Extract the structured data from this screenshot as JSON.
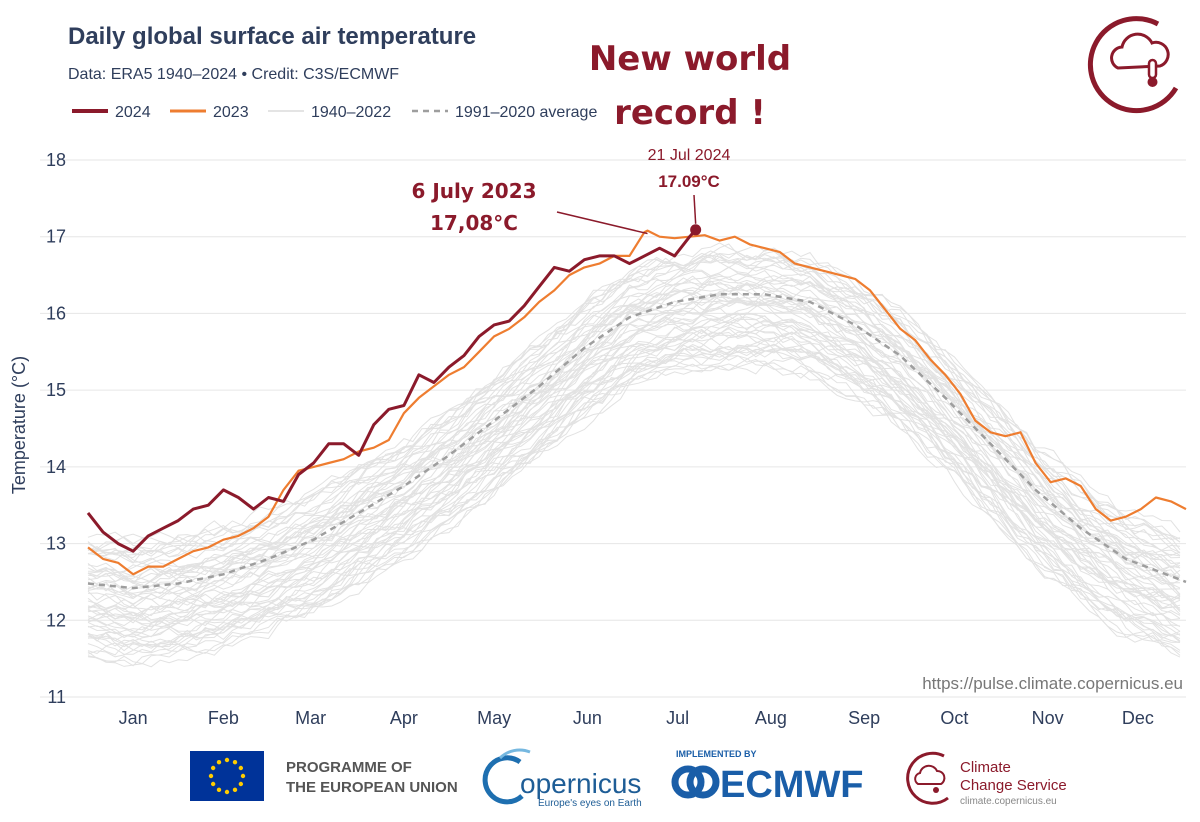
{
  "chart_data": {
    "type": "line",
    "title": "Daily global surface air temperature",
    "subtitle": "Data: ERA5 1940–2024  •  Credit: C3S/ECMWF",
    "ylabel": "Temperature (°C)",
    "xlabel": "",
    "ylim": [
      11,
      18
    ],
    "yticks": [
      11,
      12,
      13,
      14,
      15,
      16,
      17,
      18
    ],
    "months": [
      "Jan",
      "Feb",
      "Mar",
      "Apr",
      "May",
      "Jun",
      "Jul",
      "Aug",
      "Sep",
      "Oct",
      "Nov",
      "Dec"
    ],
    "legend": [
      "2024",
      "2023",
      "1940–2022",
      "1991–2020 average"
    ],
    "grid": true,
    "series": [
      {
        "name": "2024",
        "color": "#8b1a2b",
        "days": [
          1,
          6,
          11,
          16,
          21,
          26,
          31,
          36,
          41,
          46,
          51,
          56,
          61,
          66,
          71,
          76,
          81,
          86,
          91,
          96,
          101,
          106,
          111,
          116,
          121,
          126,
          131,
          136,
          141,
          146,
          151,
          156,
          161,
          166,
          171,
          176,
          181,
          186,
          191,
          196,
          201,
          203
        ],
        "values": [
          13.4,
          13.15,
          13.0,
          12.9,
          13.1,
          13.2,
          13.3,
          13.45,
          13.5,
          13.7,
          13.6,
          13.45,
          13.6,
          13.55,
          13.9,
          14.05,
          14.3,
          14.3,
          14.15,
          14.55,
          14.75,
          14.8,
          15.2,
          15.1,
          15.3,
          15.45,
          15.7,
          15.85,
          15.9,
          16.1,
          16.35,
          16.6,
          16.55,
          16.7,
          16.75,
          16.75,
          16.65,
          16.75,
          16.85,
          16.75,
          17.0,
          17.09
        ]
      },
      {
        "name": "2023",
        "color": "#ee7d30",
        "days": [
          1,
          6,
          11,
          16,
          21,
          26,
          31,
          36,
          41,
          46,
          51,
          56,
          61,
          66,
          71,
          76,
          81,
          86,
          91,
          96,
          101,
          106,
          111,
          116,
          121,
          126,
          131,
          136,
          141,
          146,
          151,
          156,
          161,
          166,
          171,
          176,
          181,
          186,
          187,
          191,
          196,
          201,
          206,
          211,
          216,
          221,
          226,
          231,
          236,
          241,
          246,
          251,
          256,
          261,
          266,
          271,
          276,
          281,
          286,
          291,
          296,
          301,
          306,
          311,
          316,
          321,
          326,
          331,
          336,
          341,
          346,
          351,
          356,
          361,
          366
        ],
        "values": [
          12.95,
          12.8,
          12.75,
          12.6,
          12.7,
          12.7,
          12.8,
          12.9,
          12.95,
          13.05,
          13.1,
          13.2,
          13.35,
          13.7,
          13.95,
          14.0,
          14.05,
          14.1,
          14.2,
          14.25,
          14.35,
          14.7,
          14.9,
          15.05,
          15.2,
          15.3,
          15.5,
          15.7,
          15.8,
          15.95,
          16.15,
          16.3,
          16.5,
          16.6,
          16.65,
          16.75,
          16.75,
          17.06,
          17.08,
          17.0,
          16.98,
          17.0,
          17.02,
          16.95,
          17.0,
          16.9,
          16.85,
          16.8,
          16.65,
          16.6,
          16.55,
          16.5,
          16.45,
          16.3,
          16.05,
          15.8,
          15.65,
          15.4,
          15.2,
          14.95,
          14.6,
          14.45,
          14.4,
          14.45,
          14.05,
          13.8,
          13.85,
          13.75,
          13.45,
          13.3,
          13.35,
          13.45,
          13.6,
          13.55,
          13.45
        ]
      },
      {
        "name": "1991–2020 average",
        "color": "#9e9e9e",
        "days": [
          1,
          16,
          31,
          46,
          61,
          76,
          91,
          106,
          121,
          136,
          151,
          166,
          181,
          196,
          211,
          226,
          241,
          256,
          271,
          286,
          301,
          316,
          331,
          346,
          366
        ],
        "values": [
          12.48,
          12.42,
          12.48,
          12.6,
          12.8,
          13.05,
          13.4,
          13.75,
          14.15,
          14.6,
          15.05,
          15.55,
          15.95,
          16.15,
          16.25,
          16.25,
          16.15,
          15.85,
          15.45,
          14.9,
          14.3,
          13.7,
          13.2,
          12.8,
          12.5
        ]
      }
    ],
    "background_band": {
      "name": "1940–2022",
      "color": "#e2e2e2",
      "note": "many grey lines spanning roughly 11.3–16.8 °C"
    },
    "annotations": [
      {
        "lines": [
          "New world",
          "record !"
        ]
      },
      {
        "lines": [
          "6 July 2023",
          "17,08°C"
        ],
        "day": 187,
        "value": 17.08
      },
      {
        "lines": [
          "21 Jul 2024",
          "17.09°C"
        ],
        "day": 203,
        "value": 17.09
      }
    ],
    "source_url": "https://pulse.climate.copernicus.eu"
  },
  "footer": {
    "eu_line1": "PROGRAMME OF",
    "eu_line2": "THE EUROPEAN UNION",
    "copernicus_name": "opernicus",
    "copernicus_tagline": "Europe's eyes on Earth",
    "ecmwf_prefix": "IMPLEMENTED BY",
    "ecmwf_name": "ECMWF",
    "c3s_line1": "Climate",
    "c3s_line2": "Change Service",
    "c3s_url": "climate.copernicus.eu"
  },
  "colors": {
    "y2024": "#8b1a2b",
    "y2023": "#ee7d30",
    "historical": "#e2e2e2",
    "average": "#9e9e9e",
    "text": "#2f3e5c",
    "eu_blue": "#003399",
    "eu_yellow": "#ffcc00",
    "ecmwf_blue": "#1a5ea8"
  }
}
